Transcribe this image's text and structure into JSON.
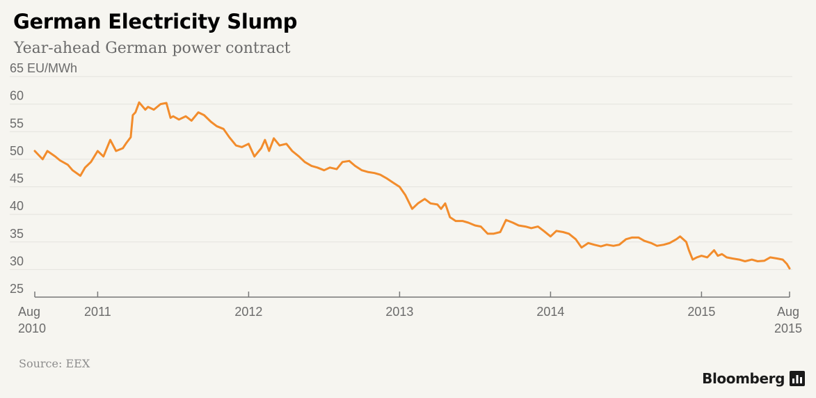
{
  "header": {
    "title": "German Electricity Slump",
    "subtitle": "Year-ahead German power contract"
  },
  "footer": {
    "source": "Source: EEX",
    "brand": "Bloomberg"
  },
  "colors": {
    "line": "#f28c2c",
    "grid": "#e4e3de",
    "axis": "#777777",
    "text": "#6b6b6b"
  },
  "icons": {
    "brand": "bloomberg-chart-icon"
  },
  "chart_data": {
    "type": "line",
    "title": "German Electricity Slump",
    "subtitle": "Year-ahead German power contract",
    "ylabel": "EU/MWh",
    "ylim": [
      25,
      65
    ],
    "xlim": [
      "2010-08",
      "2015-08"
    ],
    "yticks": [
      {
        "value": 25,
        "label": "25"
      },
      {
        "value": 30,
        "label": "30"
      },
      {
        "value": 35,
        "label": "35"
      },
      {
        "value": 40,
        "label": "40"
      },
      {
        "value": 45,
        "label": "45"
      },
      {
        "value": 50,
        "label": "50"
      },
      {
        "value": 55,
        "label": "55"
      },
      {
        "value": 60,
        "label": "60"
      },
      {
        "value": 65,
        "label": "65 EU/MWh"
      }
    ],
    "xticks": [
      {
        "value": "2010-08",
        "label": "Aug",
        "label2": "2010"
      },
      {
        "value": "2011-01",
        "label": "2011"
      },
      {
        "value": "2012-01",
        "label": "2012"
      },
      {
        "value": "2013-01",
        "label": "2013"
      },
      {
        "value": "2014-01",
        "label": "2014"
      },
      {
        "value": "2015-01",
        "label": "2015"
      },
      {
        "value": "2015-08",
        "label": "Aug",
        "label2": "2015"
      }
    ],
    "grid": true,
    "series": [
      {
        "values": [
          [
            "2010-08",
            51.5
          ],
          [
            "2010-08-20",
            50.0
          ],
          [
            "2010-09",
            51.5
          ],
          [
            "2010-09-20",
            50.5
          ],
          [
            "2010-10",
            49.8
          ],
          [
            "2010-10-20",
            49.0
          ],
          [
            "2010-11",
            48.0
          ],
          [
            "2010-11-20",
            47.0
          ],
          [
            "2010-12",
            48.5
          ],
          [
            "2010-12-15",
            49.5
          ],
          [
            "2011-01",
            51.5
          ],
          [
            "2011-01-15",
            50.5
          ],
          [
            "2011-02",
            53.5
          ],
          [
            "2011-02-15",
            51.5
          ],
          [
            "2011-03",
            52.0
          ],
          [
            "2011-03-10",
            53.0
          ],
          [
            "2011-03-20",
            54.0
          ],
          [
            "2011-03-25",
            58.0
          ],
          [
            "2011-04",
            58.5
          ],
          [
            "2011-04-10",
            60.3
          ],
          [
            "2011-04-25",
            59.0
          ],
          [
            "2011-05",
            59.5
          ],
          [
            "2011-05-15",
            59.0
          ],
          [
            "2011-06",
            60.0
          ],
          [
            "2011-06-15",
            60.2
          ],
          [
            "2011-06-25",
            57.5
          ],
          [
            "2011-07",
            57.8
          ],
          [
            "2011-07-15",
            57.2
          ],
          [
            "2011-08",
            57.8
          ],
          [
            "2011-08-15",
            57.0
          ],
          [
            "2011-09",
            58.5
          ],
          [
            "2011-09-15",
            58.0
          ],
          [
            "2011-10",
            56.8
          ],
          [
            "2011-10-15",
            56.0
          ],
          [
            "2011-11",
            55.5
          ],
          [
            "2011-11-15",
            54.0
          ],
          [
            "2011-12",
            52.5
          ],
          [
            "2011-12-15",
            52.2
          ],
          [
            "2012-01",
            52.8
          ],
          [
            "2012-01-15",
            50.5
          ],
          [
            "2012-02",
            52.0
          ],
          [
            "2012-02-10",
            53.5
          ],
          [
            "2012-02-20",
            51.5
          ],
          [
            "2012-03",
            53.8
          ],
          [
            "2012-03-15",
            52.5
          ],
          [
            "2012-04",
            52.8
          ],
          [
            "2012-04-15",
            51.5
          ],
          [
            "2012-05",
            50.5
          ],
          [
            "2012-05-15",
            49.5
          ],
          [
            "2012-06",
            48.8
          ],
          [
            "2012-06-15",
            48.5
          ],
          [
            "2012-07",
            48.0
          ],
          [
            "2012-07-15",
            48.5
          ],
          [
            "2012-08",
            48.2
          ],
          [
            "2012-08-15",
            49.5
          ],
          [
            "2012-09",
            49.7
          ],
          [
            "2012-09-15",
            48.8
          ],
          [
            "2012-10",
            48.0
          ],
          [
            "2012-10-15",
            47.7
          ],
          [
            "2012-11",
            47.5
          ],
          [
            "2012-11-15",
            47.2
          ],
          [
            "2012-12",
            46.5
          ],
          [
            "2012-12-15",
            45.8
          ],
          [
            "2013-01",
            45.0
          ],
          [
            "2013-01-15",
            43.5
          ],
          [
            "2013-02",
            41.0
          ],
          [
            "2013-02-15",
            42.0
          ],
          [
            "2013-03",
            42.8
          ],
          [
            "2013-03-15",
            42.0
          ],
          [
            "2013-04",
            41.8
          ],
          [
            "2013-04-10",
            41.0
          ],
          [
            "2013-04-20",
            42.0
          ],
          [
            "2013-05",
            39.5
          ],
          [
            "2013-05-15",
            38.8
          ],
          [
            "2013-06",
            38.8
          ],
          [
            "2013-06-15",
            38.5
          ],
          [
            "2013-07",
            38.0
          ],
          [
            "2013-07-15",
            37.8
          ],
          [
            "2013-08",
            36.5
          ],
          [
            "2013-08-15",
            36.5
          ],
          [
            "2013-09",
            36.8
          ],
          [
            "2013-09-15",
            39.0
          ],
          [
            "2013-10",
            38.5
          ],
          [
            "2013-10-15",
            38.0
          ],
          [
            "2013-11",
            37.8
          ],
          [
            "2013-11-15",
            37.5
          ],
          [
            "2013-12",
            37.8
          ],
          [
            "2013-12-15",
            37.0
          ],
          [
            "2014-01",
            36.0
          ],
          [
            "2014-01-15",
            37.0
          ],
          [
            "2014-02",
            36.8
          ],
          [
            "2014-02-15",
            36.5
          ],
          [
            "2014-03",
            35.5
          ],
          [
            "2014-03-15",
            34.0
          ],
          [
            "2014-04",
            34.8
          ],
          [
            "2014-04-15",
            34.5
          ],
          [
            "2014-05",
            34.2
          ],
          [
            "2014-05-15",
            34.5
          ],
          [
            "2014-06",
            34.3
          ],
          [
            "2014-06-15",
            34.5
          ],
          [
            "2014-07",
            35.5
          ],
          [
            "2014-07-15",
            35.8
          ],
          [
            "2014-08",
            35.8
          ],
          [
            "2014-08-15",
            35.2
          ],
          [
            "2014-09",
            34.8
          ],
          [
            "2014-09-15",
            34.3
          ],
          [
            "2014-10",
            34.5
          ],
          [
            "2014-10-15",
            34.8
          ],
          [
            "2014-11",
            35.5
          ],
          [
            "2014-11-10",
            36.0
          ],
          [
            "2014-11-25",
            35.0
          ],
          [
            "2014-12",
            33.5
          ],
          [
            "2014-12-10",
            31.8
          ],
          [
            "2014-12-20",
            32.2
          ],
          [
            "2015-01",
            32.5
          ],
          [
            "2015-01-15",
            32.2
          ],
          [
            "2015-02",
            33.5
          ],
          [
            "2015-02-10",
            32.5
          ],
          [
            "2015-02-20",
            32.8
          ],
          [
            "2015-03",
            32.2
          ],
          [
            "2015-03-15",
            32.0
          ],
          [
            "2015-04",
            31.8
          ],
          [
            "2015-04-15",
            31.5
          ],
          [
            "2015-05",
            31.8
          ],
          [
            "2015-05-15",
            31.5
          ],
          [
            "2015-06",
            31.6
          ],
          [
            "2015-06-15",
            32.2
          ],
          [
            "2015-07",
            32.0
          ],
          [
            "2015-07-15",
            31.8
          ],
          [
            "2015-07-25",
            31.0
          ],
          [
            "2015-08",
            30.2
          ]
        ]
      }
    ]
  }
}
